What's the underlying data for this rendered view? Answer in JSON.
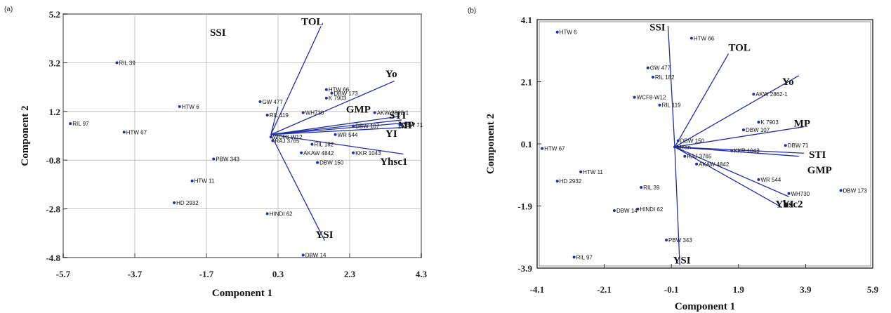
{
  "chart_data": [
    {
      "type": "scatter",
      "panel_label": "(a)",
      "xlabel": "Component 1",
      "ylabel": "Component 2",
      "xlim": [
        -5.7,
        4.3
      ],
      "ylim": [
        -4.8,
        5.2
      ],
      "xticks": [
        "-5.7",
        "-3.7",
        "-1.7",
        "0.3",
        "2.3",
        "4.3"
      ],
      "yticks": [
        "5.2",
        "3.2",
        "1.2",
        "-0.8",
        "-2.8",
        "-4.8"
      ],
      "grid": true,
      "points": [
        {
          "label": "RIL 39",
          "x": -4.2,
          "y": 3.2
        },
        {
          "label": "HTW 6",
          "x": -2.45,
          "y": 1.4
        },
        {
          "label": "RIL 97",
          "x": -5.5,
          "y": 0.7
        },
        {
          "label": "HTW 67",
          "x": -4.0,
          "y": 0.35
        },
        {
          "label": "GW 477",
          "x": -0.2,
          "y": 1.6
        },
        {
          "label": "RIL 119",
          "x": 0.0,
          "y": 1.05
        },
        {
          "label": "WH730",
          "x": 1.0,
          "y": 1.15
        },
        {
          "label": "HTW 66",
          "x": 1.65,
          "y": 2.1
        },
        {
          "label": "DBW 173",
          "x": 1.8,
          "y": 1.95
        },
        {
          "label": "K 7903",
          "x": 1.65,
          "y": 1.75
        },
        {
          "label": "AKW 2862-1",
          "x": 3.0,
          "y": 1.15
        },
        {
          "label": "DBW 71",
          "x": 3.7,
          "y": 0.65
        },
        {
          "label": "DBW 107",
          "x": 2.4,
          "y": 0.6
        },
        {
          "label": "WR 544",
          "x": 1.9,
          "y": 0.25
        },
        {
          "label": "WCF8-W12",
          "x": 0.1,
          "y": 0.15
        },
        {
          "label": "RAJ 3765",
          "x": 0.15,
          "y": 0.0
        },
        {
          "label": "RIL 182",
          "x": 1.25,
          "y": -0.15
        },
        {
          "label": "KKR 1043",
          "x": 2.4,
          "y": -0.5
        },
        {
          "label": "AKAW 4842",
          "x": 0.95,
          "y": -0.5
        },
        {
          "label": "DBW 150",
          "x": 1.4,
          "y": -0.9
        },
        {
          "label": "PBW 343",
          "x": -1.5,
          "y": -0.75
        },
        {
          "label": "HTW 11",
          "x": -2.1,
          "y": -1.65
        },
        {
          "label": "HD 2932",
          "x": -2.6,
          "y": -2.55
        },
        {
          "label": "HINDI 62",
          "x": 0.0,
          "y": -3.0
        },
        {
          "label": "DBW 14",
          "x": 1.0,
          "y": -4.7
        }
      ],
      "vectors": [
        {
          "label": "SSI",
          "x": 1.6,
          "y": -4.1
        },
        {
          "label": "TOL",
          "x": 1.5,
          "y": 4.7
        },
        {
          "label": "Yo",
          "x": 3.55,
          "y": 2.45
        },
        {
          "label": "GMP",
          "x": 3.7,
          "y": 1.0
        },
        {
          "label": "STI",
          "x": 3.75,
          "y": 0.85
        },
        {
          "label": "MP",
          "x": 4.0,
          "y": 0.75
        },
        {
          "label": "YI",
          "x": 3.9,
          "y": 0.55
        },
        {
          "label": "Yhsc1",
          "x": 3.8,
          "y": -0.55
        },
        {
          "label": "YSI",
          "x": 0.3,
          "y": 1.4
        }
      ],
      "vector_origin": {
        "x": 0.1,
        "y": 0.25
      },
      "vector_labels": [
        {
          "label": "SSI",
          "x": -1.6,
          "y": 4.3
        },
        {
          "label": "TOL",
          "x": 0.95,
          "y": 4.75
        },
        {
          "label": "Yo",
          "x": 3.3,
          "y": 2.6
        },
        {
          "label": "GMP",
          "x": 2.2,
          "y": 1.15
        },
        {
          "label": "STI",
          "x": 3.4,
          "y": 0.9
        },
        {
          "label": "MP",
          "x": 3.65,
          "y": 0.5
        },
        {
          "label": "YI",
          "x": 3.3,
          "y": 0.15
        },
        {
          "label": "Yhsc1",
          "x": 3.15,
          "y": -1.0
        },
        {
          "label": "YSI",
          "x": 1.35,
          "y": -4.0
        }
      ]
    },
    {
      "type": "scatter",
      "panel_label": "(b)",
      "xlabel": "Component 1",
      "ylabel": "Component 2",
      "xlim": [
        -4.1,
        5.9
      ],
      "ylim": [
        -3.9,
        4.1
      ],
      "xticks": [
        "-4.1",
        "-2.1",
        "-0.1",
        "1.9",
        "3.9",
        "5.9"
      ],
      "yticks": [
        "4.1",
        "2.1",
        "0.1",
        "-1.9",
        "-3.9"
      ],
      "grid": false,
      "points": [
        {
          "label": "HTW 6",
          "x": -3.5,
          "y": 3.7
        },
        {
          "label": "HTW 66",
          "x": 0.5,
          "y": 3.5
        },
        {
          "label": "GW 477",
          "x": -0.8,
          "y": 2.55
        },
        {
          "label": "RIL 182",
          "x": -0.65,
          "y": 2.25
        },
        {
          "label": "WCF8-W12",
          "x": -1.2,
          "y": 1.6
        },
        {
          "label": "RIL 119",
          "x": -0.45,
          "y": 1.35
        },
        {
          "label": "AKW 2862-1",
          "x": 2.35,
          "y": 1.7
        },
        {
          "label": "K 7903",
          "x": 2.5,
          "y": 0.8
        },
        {
          "label": "DBW 107",
          "x": 2.05,
          "y": 0.55
        },
        {
          "label": "DBW 150",
          "x": 0.1,
          "y": 0.2
        },
        {
          "label": "Mean",
          "x": 0.0,
          "y": 0.0
        },
        {
          "label": "DBW 71",
          "x": 3.3,
          "y": 0.05
        },
        {
          "label": "KKR 1043",
          "x": 1.7,
          "y": -0.12
        },
        {
          "label": "RAJ 3765",
          "x": 0.3,
          "y": -0.3
        },
        {
          "label": "AKAW 4842",
          "x": 0.65,
          "y": -0.55
        },
        {
          "label": "HTW 67",
          "x": -3.95,
          "y": -0.05
        },
        {
          "label": "HTW 11",
          "x": -2.8,
          "y": -0.8
        },
        {
          "label": "HD 2932",
          "x": -3.5,
          "y": -1.1
        },
        {
          "label": "RIL 39",
          "x": -1.0,
          "y": -1.3
        },
        {
          "label": "WR 544",
          "x": 2.5,
          "y": -1.05
        },
        {
          "label": "WH730",
          "x": 3.4,
          "y": -1.5
        },
        {
          "label": "DBW 173",
          "x": 4.95,
          "y": -1.4
        },
        {
          "label": "DBW 14",
          "x": -1.8,
          "y": -2.05
        },
        {
          "label": "HINDI 62",
          "x": -1.1,
          "y": -2.0
        },
        {
          "label": "PBW 343",
          "x": -0.25,
          "y": -3.0
        },
        {
          "label": "RIL 97",
          "x": -3.0,
          "y": -3.55
        }
      ],
      "vectors": [
        {
          "label": "SSI",
          "x": -0.2,
          "y": 3.9
        },
        {
          "label": "TOL",
          "x": 1.6,
          "y": 3.0
        },
        {
          "label": "Yo",
          "x": 3.7,
          "y": 2.3
        },
        {
          "label": "MP",
          "x": 3.85,
          "y": 0.65
        },
        {
          "label": "STI",
          "x": 3.85,
          "y": -0.2
        },
        {
          "label": "GMP",
          "x": 3.7,
          "y": -0.3
        },
        {
          "label": "Yhsc2",
          "x": 3.2,
          "y": -1.95
        },
        {
          "label": "YI",
          "x": 3.4,
          "y": -1.6
        },
        {
          "label": "YSI",
          "x": 0.15,
          "y": -3.8
        }
      ],
      "vector_origin": {
        "x": 0.0,
        "y": 0.0
      },
      "vector_labels": [
        {
          "label": "SSI",
          "x": -0.75,
          "y": 3.75
        },
        {
          "label": "TOL",
          "x": 1.6,
          "y": 3.1
        },
        {
          "label": "Yo",
          "x": 3.2,
          "y": 2.0
        },
        {
          "label": "MP",
          "x": 3.55,
          "y": 0.65
        },
        {
          "label": "STI",
          "x": 4.0,
          "y": -0.35
        },
        {
          "label": "GMP",
          "x": 3.95,
          "y": -0.85
        },
        {
          "label": "YI",
          "x": 3.2,
          "y": -1.95
        },
        {
          "label": "Yhsc2",
          "x": 3.0,
          "y": -1.95
        },
        {
          "label": "YSI",
          "x": -0.05,
          "y": -3.75
        }
      ]
    }
  ]
}
